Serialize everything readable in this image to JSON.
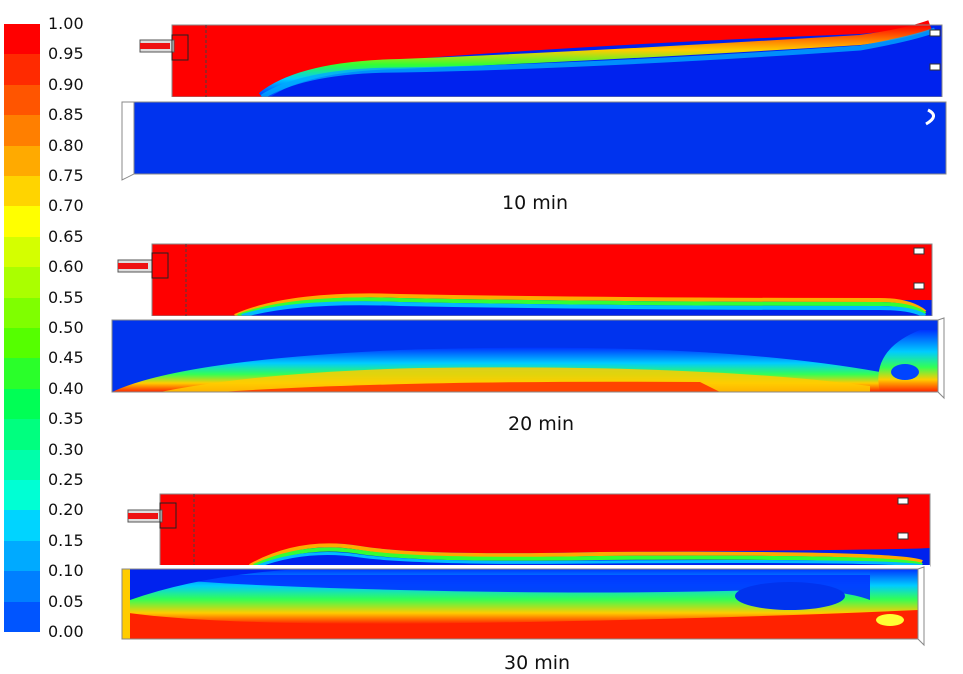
{
  "colorbar": {
    "ticks": [
      "1.00",
      "0.95",
      "0.90",
      "0.85",
      "0.80",
      "0.75",
      "0.70",
      "0.65",
      "0.60",
      "0.55",
      "0.50",
      "0.45",
      "0.40",
      "0.35",
      "0.30",
      "0.25",
      "0.20",
      "0.15",
      "0.10",
      "0.05",
      "0.00"
    ],
    "band_colors": [
      "#ff0000",
      "#ff2a00",
      "#ff5500",
      "#ff7f00",
      "#ffaa00",
      "#ffd400",
      "#ffff00",
      "#d4ff00",
      "#aaff00",
      "#7fff00",
      "#55ff00",
      "#2aff2a",
      "#00ff55",
      "#00ff7f",
      "#00ffaa",
      "#00ffd4",
      "#00d4ff",
      "#00aaff",
      "#007fff",
      "#0055ff"
    ]
  },
  "panels": [
    {
      "caption": "10 min"
    },
    {
      "caption": "20 min"
    },
    {
      "caption": "30 min"
    }
  ]
}
